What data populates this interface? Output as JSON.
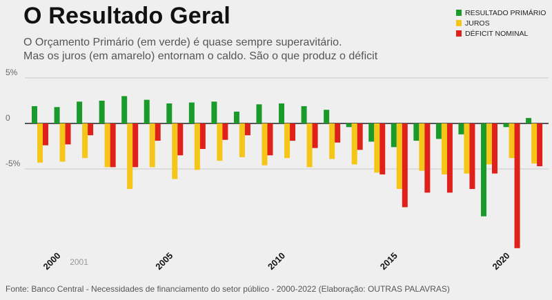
{
  "title": "O Resultado Geral",
  "subtitle_line1": "O Orçamento Primário (em verde) é quase sempre superavitário.",
  "subtitle_line2": "Mas os juros (em amarelo) entornam o caldo. São o que produz o déficit",
  "source": "Fonte: Banco Central - Necessidades de financiamento do setor público - 2000-2022 (Elaboração: OUTRAS PALAVRAS)",
  "legend": [
    {
      "label": "RESULTADO PRIMÁRIO",
      "color": "#1a9a2a"
    },
    {
      "label": "JUROS",
      "color": "#f5c518"
    },
    {
      "label": "DÉFICIT NOMINAL",
      "color": "#e0201b"
    }
  ],
  "chart_data": {
    "type": "bar",
    "categories": [
      "2000",
      "2001",
      "2002",
      "2003",
      "2004",
      "2005",
      "2006",
      "2007",
      "2008",
      "2009",
      "2010",
      "2011",
      "2012",
      "2013",
      "2014",
      "2015",
      "2016",
      "2017",
      "2018",
      "2019",
      "2020",
      "2021",
      "2022"
    ],
    "series": [
      {
        "name": "RESULTADO PRIMÁRIO",
        "color": "#1a9a2a",
        "values": [
          1.9,
          1.8,
          2.4,
          2.5,
          3.0,
          2.6,
          2.2,
          2.3,
          2.4,
          1.3,
          2.1,
          2.2,
          1.9,
          1.5,
          -0.4,
          -2.0,
          -2.6,
          -1.9,
          -1.7,
          -1.2,
          -10.2,
          -0.4,
          0.6
        ]
      },
      {
        "name": "JUROS",
        "color": "#f5c518",
        "values": [
          -4.3,
          -4.2,
          -3.8,
          -4.8,
          -7.2,
          -4.8,
          -6.1,
          -5.1,
          -4.1,
          -3.7,
          -4.6,
          -3.8,
          -4.8,
          -3.9,
          -4.5,
          -5.4,
          -7.2,
          -5.2,
          -5.6,
          -5.5,
          -4.5,
          -3.8,
          -4.4
        ]
      },
      {
        "name": "DÉFICIT NOMINAL",
        "color": "#e0201b",
        "values": [
          -2.4,
          -2.3,
          -1.3,
          -4.8,
          -4.8,
          -1.9,
          -3.5,
          -2.8,
          -1.8,
          -1.3,
          -3.5,
          -1.9,
          -2.7,
          -2.1,
          -2.9,
          -5.6,
          -9.2,
          -7.6,
          -7.6,
          -7.2,
          -5.5,
          -13.7,
          -4.7
        ]
      }
    ],
    "y_ticks": [
      {
        "value": 5,
        "label": "5%"
      },
      {
        "value": 0,
        "label": "0"
      },
      {
        "value": -5,
        "label": "-5%"
      }
    ],
    "x_labels": [
      {
        "category": "2000",
        "label": "2000",
        "rotate": true,
        "bold": true
      },
      {
        "category": "2001",
        "label": "2001",
        "rotate": false,
        "bold": false
      },
      {
        "category": "2005",
        "label": "2005",
        "rotate": true,
        "bold": true
      },
      {
        "category": "2010",
        "label": "2010",
        "rotate": true,
        "bold": true
      },
      {
        "category": "2015",
        "label": "2015",
        "rotate": true,
        "bold": true
      },
      {
        "category": "2020",
        "label": "2020",
        "rotate": true,
        "bold": true
      }
    ],
    "ylim": [
      -14,
      5
    ],
    "grid": true,
    "legend_position": "top-right"
  }
}
